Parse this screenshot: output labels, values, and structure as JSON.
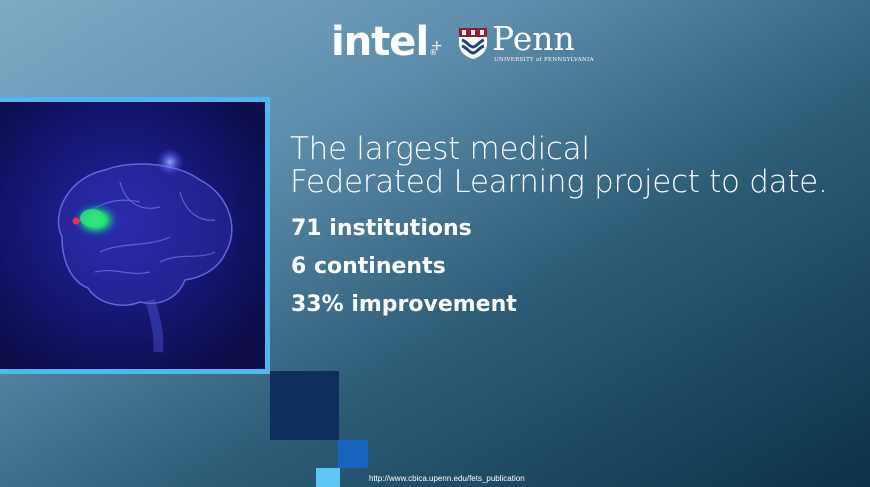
{
  "logos": {
    "intel": "intel",
    "intel_reg": "®",
    "plus": "+",
    "penn": "Penn",
    "penn_subtitle": "UNIVERSITY of PENNSYLVANIA",
    "penn_shield_icon": "penn-shield-icon"
  },
  "image": {
    "icon": "brain-scan-icon"
  },
  "headline": {
    "line1": "The largest medical",
    "line2": "Federated Learning project to date."
  },
  "stats": [
    "71 institutions",
    "6 continents",
    "33% improvement"
  ],
  "footer": {
    "url": "http://www.cbica.upenn.edu/fets_publication"
  },
  "colors": {
    "frame_border": "#4fb8ee",
    "square_dark": "#0e2f5e",
    "square_mid": "#1664c0",
    "square_light": "#5dc7f3"
  }
}
